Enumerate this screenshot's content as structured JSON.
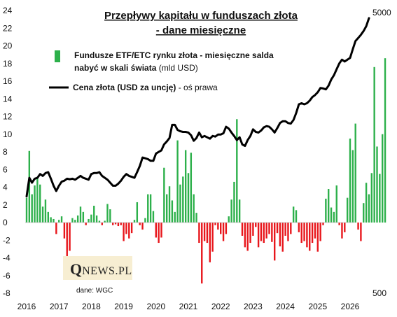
{
  "chart_data": {
    "type": "bar+line",
    "title_line1": "Przepływy kapitału w funduszach złota",
    "title_line2": "- dane miesięczne",
    "x_ticks": [
      "2016",
      "2017",
      "2018",
      "2019",
      "2020",
      "2021",
      "2022",
      "2023",
      "2024",
      "2025",
      "2026"
    ],
    "y_left_ticks": [
      "-8",
      "-6",
      "-4",
      "-2",
      "0",
      "2",
      "4",
      "6",
      "8",
      "10",
      "12",
      "14",
      "16",
      "18",
      "20",
      "22",
      "24"
    ],
    "y_left_range": [
      -8,
      24
    ],
    "y_right_labels": {
      "top": "5000",
      "bottom": "500"
    },
    "y_right_range": [
      500,
      5000
    ],
    "series": [
      {
        "name_bold": "Fundusze ETF/ETC rynku złota - miesięczne salda",
        "name_line2_bold": "nabyć w skali świata",
        "name_unit": " (mld USD)",
        "type": "bar",
        "positive_color": "#2db04b",
        "negative_color": "#e8161b",
        "start_year": 2016.0,
        "values": [
          2.8,
          8.1,
          3.2,
          4.2,
          5.1,
          4.3,
          1.8,
          2.6,
          1.2,
          0.6,
          0.4,
          -1.3,
          0.3,
          0.7,
          -1.8,
          -4.3,
          -3.2,
          0.5,
          0.3,
          0.8,
          1.8,
          1.2,
          -0.3,
          0.4,
          0.9,
          1.9,
          0.8,
          0.2,
          -0.3,
          0.2,
          2.1,
          1.5,
          -0.3,
          -0.2,
          -0.4,
          -0.3,
          -2.1,
          -1.3,
          -1.8,
          -1.2,
          0.3,
          2.3,
          -0.3,
          -0.8,
          0.5,
          3.2,
          3.2,
          1.3,
          -1.7,
          -2.3,
          -1.7,
          6.2,
          3.2,
          4.1,
          2.5,
          1.2,
          9.3,
          4.3,
          5.2,
          8.2,
          5.6,
          7.9,
          3.2,
          1.1,
          -2.3,
          -6.9,
          -2.1,
          -2.3,
          -4.5,
          -3.3,
          -0.3,
          -0.8,
          -1.3,
          -2.1,
          -1.3,
          0.7,
          2.6,
          4.6,
          11.7,
          2.6,
          -1.5,
          -2.8,
          -3.2,
          -2.3,
          -1.5,
          -0.5,
          -2.8,
          -2.1,
          -2.3,
          -1.8,
          -1.3,
          -2.2,
          -4.3,
          -1.2,
          -2.7,
          -3.3,
          -1.5,
          -2.1,
          -1.3,
          1.8,
          1.4,
          -1.1,
          -2.3,
          -2.1,
          -2.8,
          -3.2,
          -2.3,
          -1.8,
          -3.3,
          -2.1,
          -0.3,
          2.7,
          3.8,
          1.7,
          1.2,
          4.2,
          -0.3,
          -1.8,
          -1.1,
          2.8,
          9.5,
          8.2,
          11.2,
          -0.8,
          -2.1,
          2.2,
          4.5,
          3.2,
          5.6,
          17.6,
          8.6,
          5.5,
          10.0,
          18.6
        ],
        "data_label": "",
        "data_label2": ""
      },
      {
        "name_bold": "Cena złota (USD za uncję)",
        "name_unit": " - oś prawa",
        "type": "line",
        "color": "#000000",
        "start_year": 2016.0,
        "values": [
          1100,
          1280,
          1230,
          1270,
          1280,
          1320,
          1300,
          1330,
          1340,
          1270,
          1200,
          1150,
          1200,
          1240,
          1250,
          1270,
          1265,
          1270,
          1260,
          1280,
          1300,
          1280,
          1270,
          1260,
          1320,
          1330,
          1330,
          1340,
          1300,
          1280,
          1260,
          1230,
          1200,
          1200,
          1220,
          1250,
          1290,
          1320,
          1300,
          1290,
          1280,
          1340,
          1410,
          1510,
          1500,
          1490,
          1470,
          1470,
          1560,
          1580,
          1600,
          1680,
          1720,
          1770,
          1970,
          1970,
          1890,
          1870,
          1860,
          1860,
          1850,
          1810,
          1730,
          1770,
          1850,
          1780,
          1800,
          1780,
          1760,
          1800,
          1790,
          1820,
          1820,
          1840,
          1940,
          1910,
          1850,
          1800,
          1740,
          1780,
          1680,
          1660,
          1740,
          1800,
          1900,
          1860,
          1850,
          1880,
          1930,
          1950,
          1940,
          1900,
          1850,
          1920,
          2000,
          2030,
          2030,
          2000,
          1990,
          2050,
          2170,
          2330,
          2350,
          2330,
          2350,
          2400,
          2470,
          2510,
          2570,
          2660,
          2650,
          2630,
          2710,
          2850,
          2950,
          3100,
          3250,
          3350,
          3300,
          3350,
          3400,
          3650,
          3900,
          4000,
          4100,
          4230,
          4400,
          4700
        ]
      }
    ],
    "source": "dane: WGC",
    "logo_q": "Q",
    "logo_text": "NEWS.PL"
  }
}
